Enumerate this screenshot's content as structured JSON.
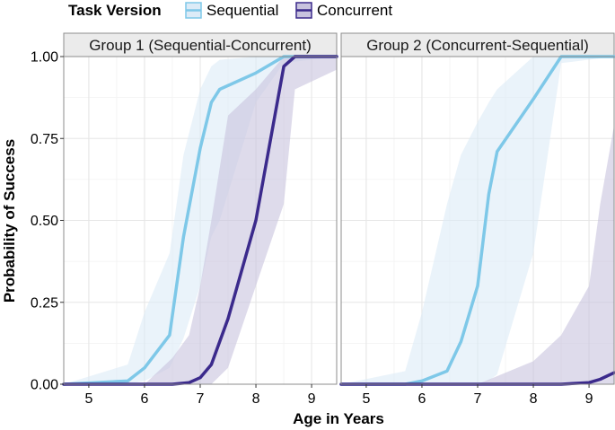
{
  "chart_data": {
    "type": "line",
    "legend": {
      "title": "Task Version",
      "position": "top-left",
      "entries": [
        {
          "label": "Sequential",
          "color": "#7ec8e8",
          "band_color": "#dcebf7"
        },
        {
          "label": "Concurrent",
          "color": "#3b2a8c",
          "band_color": "#c8c3de"
        }
      ]
    },
    "xlabel": "Age in Years",
    "ylabel": "Probability of Success",
    "xlim": [
      4.55,
      9.45
    ],
    "ylim": [
      0,
      1
    ],
    "xticks": [
      5,
      6,
      7,
      8,
      9
    ],
    "yticks": [
      0.0,
      0.25,
      0.5,
      0.75,
      1.0
    ],
    "ytick_labels": [
      "0.00",
      "0.25",
      "0.50",
      "0.75",
      "1.00"
    ],
    "grid": true,
    "panels": [
      {
        "title": "Group 1 (Sequential-Concurrent)",
        "series": [
          {
            "name": "Sequential",
            "x": [
              4.55,
              5.7,
              6.0,
              6.45,
              6.7,
              7.0,
              7.2,
              7.35,
              8.0,
              8.5,
              9.45
            ],
            "y": [
              0.0,
              0.01,
              0.05,
              0.15,
              0.45,
              0.72,
              0.86,
              0.9,
              0.95,
              1.0,
              1.0
            ],
            "upper": [
              0.0,
              0.06,
              0.22,
              0.4,
              0.7,
              0.9,
              0.97,
              0.99,
              1.0,
              1.0,
              1.0
            ],
            "lower": [
              0.0,
              0.0,
              0.01,
              0.05,
              0.14,
              0.3,
              0.45,
              0.5,
              0.86,
              0.98,
              1.0
            ]
          },
          {
            "name": "Concurrent",
            "x": [
              4.55,
              6.0,
              6.5,
              6.8,
              7.0,
              7.2,
              7.5,
              8.0,
              8.5,
              8.7,
              9.45
            ],
            "y": [
              0.0,
              0.0,
              0.0,
              0.005,
              0.02,
              0.06,
              0.2,
              0.5,
              0.97,
              1.0,
              1.0
            ],
            "upper": [
              0.0,
              0.0,
              0.08,
              0.15,
              0.3,
              0.5,
              0.82,
              0.9,
              1.0,
              1.0,
              1.0
            ],
            "lower": [
              0.0,
              0.0,
              0.0,
              0.0,
              0.0,
              0.0,
              0.05,
              0.3,
              0.55,
              0.9,
              0.96
            ]
          }
        ]
      },
      {
        "title": "Group 2 (Concurrent-Sequential)",
        "series": [
          {
            "name": "Sequential",
            "x": [
              4.55,
              5.7,
              6.0,
              6.45,
              6.7,
              7.0,
              7.2,
              7.35,
              8.0,
              8.5,
              9.45
            ],
            "y": [
              0.0,
              0.0,
              0.01,
              0.04,
              0.13,
              0.3,
              0.58,
              0.71,
              0.87,
              1.0,
              1.0
            ],
            "upper": [
              0.0,
              0.04,
              0.22,
              0.55,
              0.7,
              0.8,
              0.86,
              0.9,
              1.0,
              1.0,
              1.0
            ],
            "lower": [
              0.0,
              0.0,
              0.0,
              0.0,
              0.0,
              0.0,
              0.01,
              0.03,
              0.4,
              0.98,
              1.0
            ]
          },
          {
            "name": "Concurrent",
            "x": [
              4.55,
              7.0,
              8.0,
              8.5,
              9.0,
              9.2,
              9.45
            ],
            "y": [
              0.0,
              0.0,
              0.0,
              0.0,
              0.005,
              0.015,
              0.035
            ],
            "upper": [
              0.0,
              0.0,
              0.07,
              0.15,
              0.3,
              0.55,
              0.79
            ],
            "lower": [
              0.0,
              0.0,
              0.0,
              0.0,
              0.0,
              0.0,
              0.0
            ]
          }
        ]
      }
    ]
  }
}
